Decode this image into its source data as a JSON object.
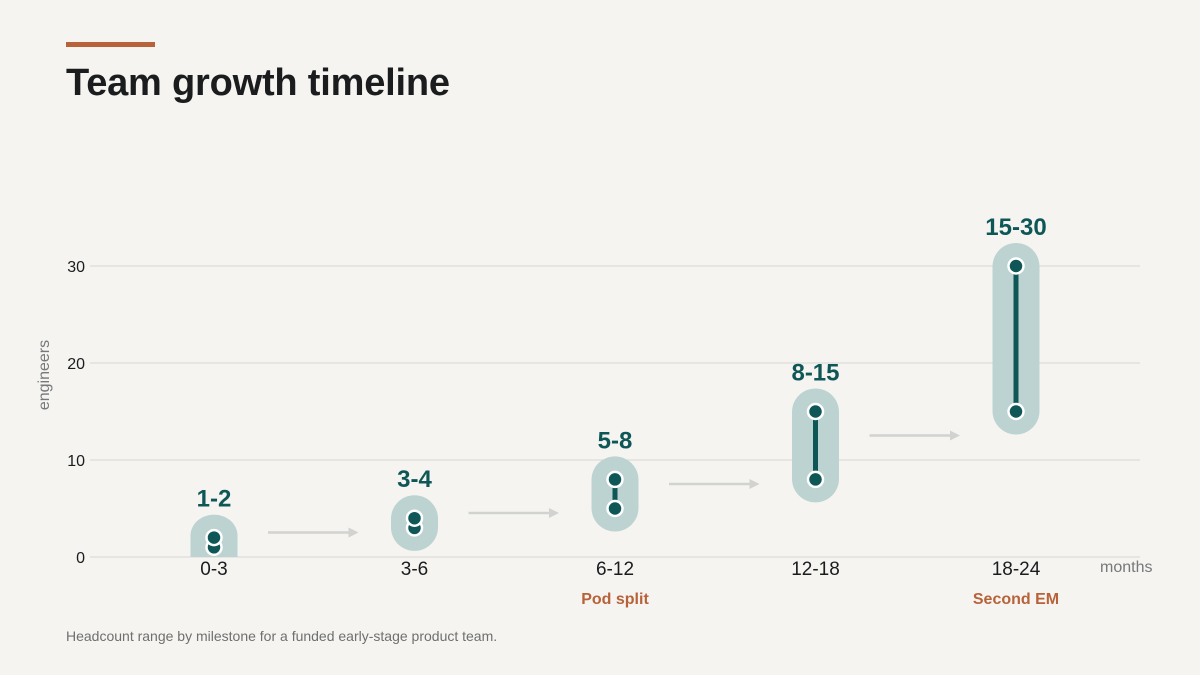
{
  "page": {
    "title": "Team growth timeline",
    "caption": "Headcount range by milestone for a funded early-stage product team."
  },
  "colors": {
    "accent": "#b8623a",
    "primary": "#0f5757",
    "band": "#bcd3d1",
    "grid": "#d7d6d2",
    "arrow": "#d2d2d0",
    "annotation": "#b8623a"
  },
  "chart_data": {
    "type": "range",
    "title": "Team growth timeline",
    "xlabel": "months",
    "ylabel": "engineers",
    "ylim": [
      0,
      30
    ],
    "yticks": [
      0,
      10,
      20,
      30
    ],
    "grid": true,
    "categories": [
      "0-3",
      "3-6",
      "6-12",
      "12-18",
      "18-24"
    ],
    "series": [
      {
        "low": [
          1,
          3,
          5,
          8,
          15
        ],
        "high": [
          2,
          4,
          8,
          15,
          30
        ]
      }
    ],
    "labels": [
      "1-2",
      "3-4",
      "5-8",
      "8-15",
      "15-30"
    ],
    "annotations": [
      "",
      "",
      "Pod split",
      "",
      "Second EM"
    ]
  }
}
